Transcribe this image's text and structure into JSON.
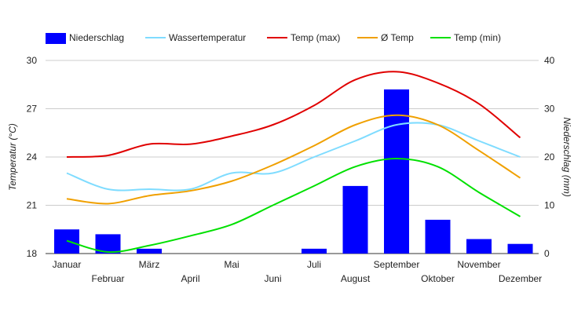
{
  "chart_data": {
    "type": "bar",
    "categories": [
      "Januar",
      "Februar",
      "März",
      "April",
      "Mai",
      "Juni",
      "Juli",
      "August",
      "September",
      "Oktober",
      "November",
      "Dezember"
    ],
    "bar_series": {
      "name": "Niederschlag",
      "color": "#0000ff",
      "axis": "right",
      "values": [
        5,
        4,
        1,
        0,
        0,
        0,
        1,
        14,
        34,
        7,
        3,
        2
      ]
    },
    "line_series": [
      {
        "name": "Wassertemperatur",
        "color": "#7fdcff",
        "axis": "left",
        "values": [
          23.0,
          22.0,
          22.0,
          22.0,
          23.0,
          23.0,
          24.0,
          25.0,
          26.0,
          26.0,
          25.0,
          24.0
        ]
      },
      {
        "name": "Temp (max)",
        "color": "#e00000",
        "axis": "left",
        "values": [
          24.0,
          24.1,
          24.8,
          24.8,
          25.3,
          26.0,
          27.2,
          28.8,
          29.3,
          28.6,
          27.3,
          25.2
        ]
      },
      {
        "name": "Ø Temp",
        "color": "#f0a000",
        "axis": "left",
        "values": [
          21.4,
          21.1,
          21.6,
          21.9,
          22.5,
          23.5,
          24.7,
          26.0,
          26.6,
          26.0,
          24.4,
          22.7
        ]
      },
      {
        "name": "Temp (min)",
        "color": "#00e000",
        "axis": "left",
        "values": [
          18.8,
          18.1,
          18.5,
          19.1,
          19.8,
          21.0,
          22.2,
          23.4,
          23.9,
          23.4,
          21.8,
          20.3
        ]
      }
    ],
    "legend_order": [
      "Niederschlag",
      "Wassertemperatur",
      "Temp (max)",
      "Ø Temp",
      "Temp (min)"
    ],
    "legend_position": "top-left",
    "y_left": {
      "label": "Temperatur (°C)",
      "ylim": [
        18,
        30
      ],
      "ticks": [
        18,
        21,
        24,
        27,
        30
      ]
    },
    "y_right": {
      "label": "Niederschlag (mm)",
      "ylim": [
        0,
        40
      ],
      "ticks": [
        0,
        10,
        20,
        30,
        40
      ]
    },
    "grid": {
      "horizontal": true,
      "vertical": false
    }
  }
}
